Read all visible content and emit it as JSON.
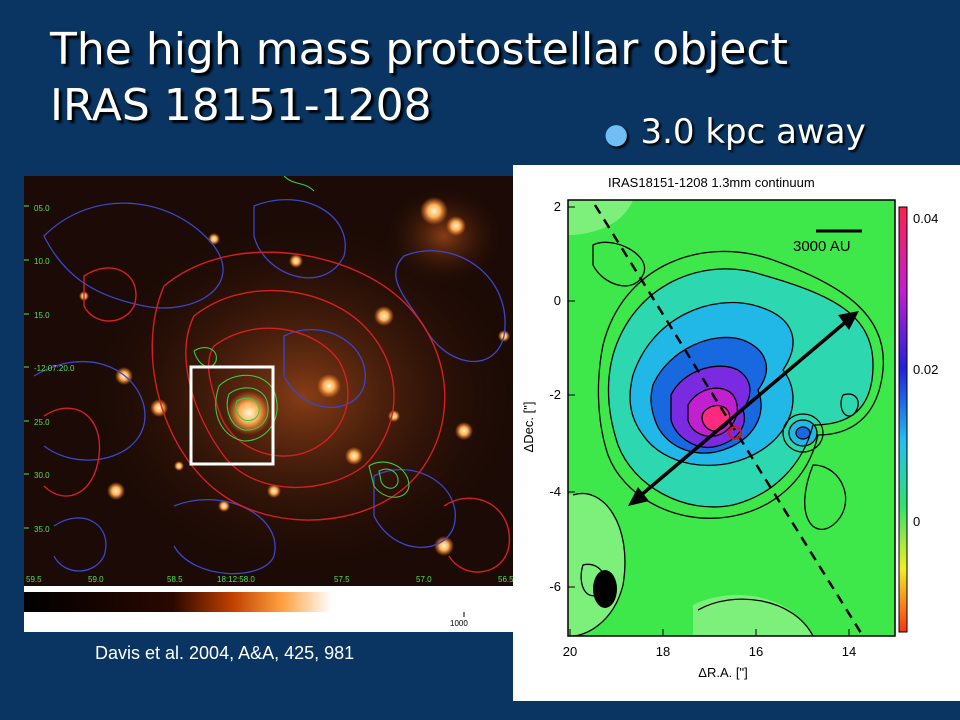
{
  "slide": {
    "title_line1": "The high mass protostellar object",
    "title_line2": "IRAS 18151-1208",
    "bullet": "3.0 kpc away",
    "caption": "Davis et al. 2004, A&A, 425, 981"
  },
  "left_image": {
    "dec_labels": [
      "05.0",
      "10.0",
      "15.0",
      "-12:07:20.0",
      "25.0",
      "30.0",
      "35.0"
    ],
    "ra_labels": [
      "59.5",
      "59.0",
      "58.5",
      "18:12:58.0",
      "57.5",
      "57.0",
      "56.5"
    ],
    "colorbar_label": "1000"
  },
  "right_map": {
    "title": "IRAS18151-1208 1.3mm continuum",
    "xlabel": "ΔR.A. [\"]",
    "ylabel": "ΔDec. [\"]",
    "x_ticks": [
      "20",
      "18",
      "16",
      "14"
    ],
    "y_ticks": [
      "2",
      "0",
      "-2",
      "-4",
      "-6"
    ],
    "colorbar_ticks": [
      "0.04",
      "0.02",
      "0"
    ],
    "scalebar_label": "3000 AU"
  }
}
